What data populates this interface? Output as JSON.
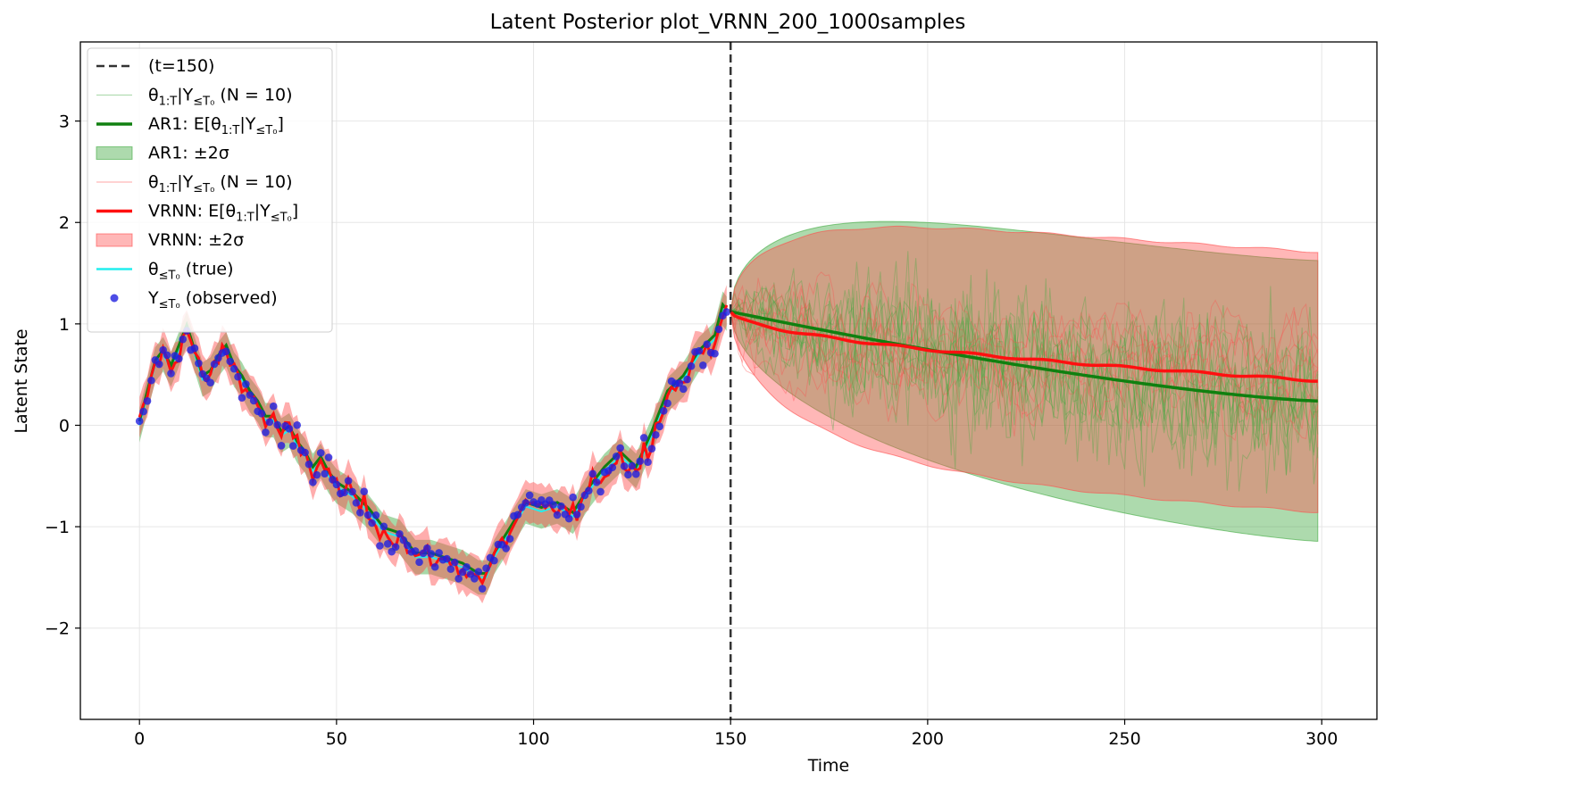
{
  "chart_data": {
    "type": "line",
    "title": "Latent Posterior plot_VRNN_200_1000samples",
    "xlabel": "Time",
    "ylabel": "Latent State",
    "xlim": [
      -15,
      314
    ],
    "ylim": [
      -2.9,
      3.78
    ],
    "xticks": [
      0,
      50,
      100,
      150,
      200,
      250,
      300
    ],
    "yticks": [
      -2,
      -1,
      0,
      1,
      2,
      3
    ],
    "xtick_labels": [
      "0",
      "50",
      "100",
      "150",
      "200",
      "250",
      "300"
    ],
    "ytick_labels": [
      "−2",
      "−1",
      "0",
      "1",
      "2",
      "3"
    ],
    "grid": true,
    "legend_position": "top-left",
    "cutoff_t": 150,
    "colors": {
      "ar1": "#108010",
      "ar1_fill": "#3ca83c",
      "vrnn": "#ff1010",
      "vrnn_fill": "#ff4a4a",
      "true": "#22eeee",
      "observed": "#2020e0",
      "cutoff": "#333333"
    },
    "legend": [
      {
        "kind": "dashed",
        "label": "(t=150)"
      },
      {
        "kind": "thin-green",
        "label": "θ",
        "sub1": "1:T",
        "mid": "|Y",
        "sub2": "≤T₀",
        "tail": " (N = 10)"
      },
      {
        "kind": "thick-green",
        "label": "AR1: E[θ",
        "sub1": "1:T",
        "mid": "|Y",
        "sub2": "≤T₀",
        "tail": "]"
      },
      {
        "kind": "fill-green",
        "label": "AR1: ±2σ"
      },
      {
        "kind": "thin-red",
        "label": "θ",
        "sub1": "1:T",
        "mid": "|Y",
        "sub2": "≤T₀",
        "tail": " (N = 10)"
      },
      {
        "kind": "thick-red",
        "label": "VRNN: E[θ",
        "sub1": "1:T",
        "mid": "|Y",
        "sub2": "≤T₀",
        "tail": "]"
      },
      {
        "kind": "fill-red",
        "label": "VRNN: ±2σ"
      },
      {
        "kind": "cyan",
        "label": "θ",
        "sub1": "≤T₀",
        "tail": " (true)"
      },
      {
        "kind": "dots",
        "label": "Y",
        "sub1": "≤T₀",
        "tail": " (observed)"
      }
    ],
    "observed_keypoints": {
      "t": [
        0,
        2,
        4,
        6,
        8,
        10,
        12,
        14,
        16,
        18,
        20,
        22,
        24,
        26,
        28,
        30,
        32,
        34,
        36,
        38,
        40,
        42,
        44,
        46,
        48,
        50,
        54,
        58,
        62,
        66,
        70,
        74,
        78,
        82,
        86,
        88,
        90,
        94,
        98,
        102,
        106,
        110,
        114,
        118,
        122,
        126,
        130,
        134,
        138,
        142,
        146,
        148,
        149
      ],
      "y": [
        0.0,
        0.3,
        0.6,
        0.7,
        0.55,
        0.75,
        0.95,
        0.7,
        0.45,
        0.5,
        0.65,
        0.75,
        0.55,
        0.45,
        0.3,
        0.2,
        0.05,
        0.05,
        -0.1,
        -0.05,
        -0.2,
        -0.3,
        -0.45,
        -0.35,
        -0.5,
        -0.6,
        -0.7,
        -0.85,
        -1.05,
        -1.1,
        -1.3,
        -1.3,
        -1.35,
        -1.4,
        -1.5,
        -1.5,
        -1.3,
        -1.05,
        -0.8,
        -0.85,
        -0.8,
        -0.9,
        -0.65,
        -0.45,
        -0.3,
        -0.45,
        -0.1,
        0.3,
        0.45,
        0.7,
        0.85,
        1.15,
        1.1
      ]
    },
    "forecast": {
      "start_t": 150,
      "end_t": 299,
      "start_value": 1.12,
      "ar1_mean_end": 0.24,
      "vrnn_mean_end": 0.44,
      "ar1_band_upper_end": 1.63,
      "ar1_band_lower_end": -1.15,
      "vrnn_band_upper_end": 1.71,
      "vrnn_band_lower_end": -0.84
    },
    "series": [
      {
        "name": "AR1: E[θ1:T|Y≤T0]",
        "values_ref": "forecast.ar1_mean"
      },
      {
        "name": "VRNN: E[θ1:T|Y≤T0]",
        "values_ref": "forecast.vrnn_mean"
      },
      {
        "name": "θ≤T0 (true)",
        "values_ref": "observed_keypoints"
      },
      {
        "name": "Y≤T0 (observed)",
        "values_ref": "observed_keypoints"
      }
    ]
  }
}
